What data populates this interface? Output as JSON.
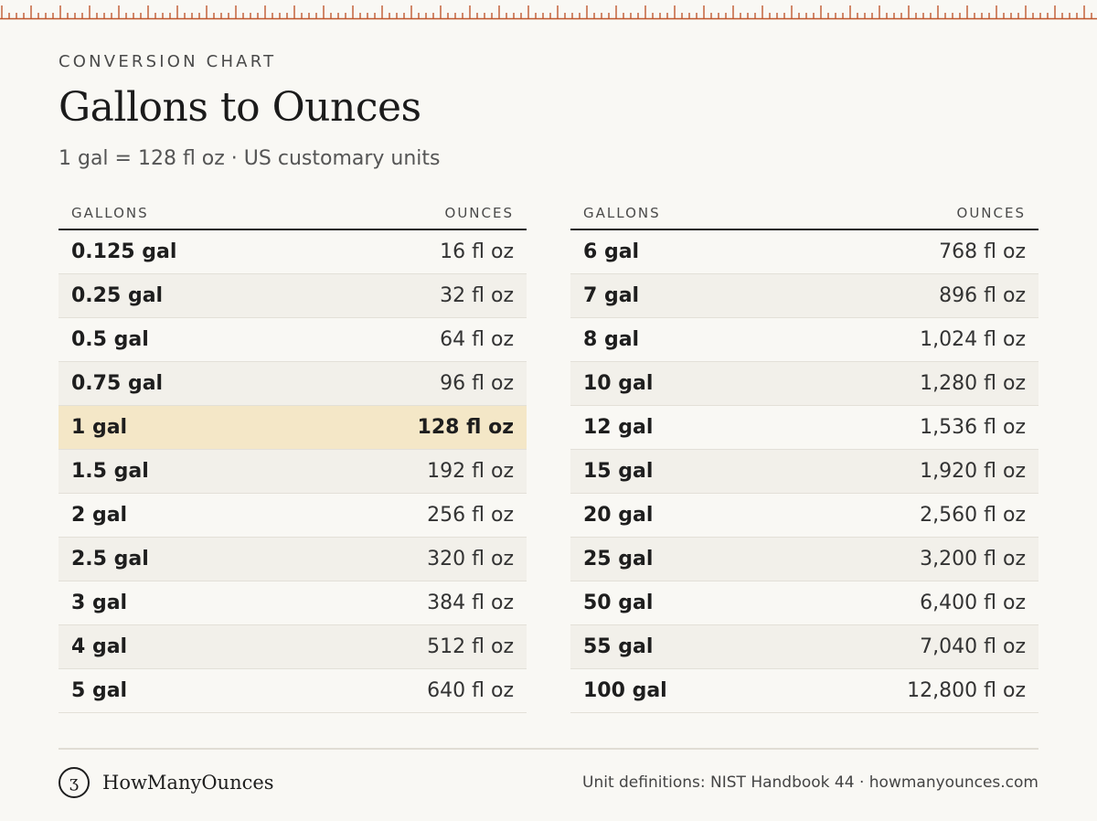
{
  "header": {
    "eyebrow": "CONVERSION CHART",
    "title": "Gallons to Ounces",
    "subtitle": "1 gal = 128 fl oz · US customary units"
  },
  "colors": {
    "ruler": "#c0572f",
    "highlight_row": "#f4e7c7",
    "alt_row": "#f2f0ea",
    "background": "#f9f8f4"
  },
  "tables": {
    "left": {
      "col_gallons": "GALLONS",
      "col_ounces": "OUNCES",
      "rows": [
        {
          "gal": "0.125 gal",
          "oz": "16 fl oz"
        },
        {
          "gal": "0.25 gal",
          "oz": "32 fl oz"
        },
        {
          "gal": "0.5 gal",
          "oz": "64 fl oz"
        },
        {
          "gal": "0.75 gal",
          "oz": "96 fl oz"
        },
        {
          "gal": "1 gal",
          "oz": "128 fl oz",
          "highlight": true
        },
        {
          "gal": "1.5 gal",
          "oz": "192 fl oz"
        },
        {
          "gal": "2 gal",
          "oz": "256 fl oz"
        },
        {
          "gal": "2.5 gal",
          "oz": "320 fl oz"
        },
        {
          "gal": "3 gal",
          "oz": "384 fl oz"
        },
        {
          "gal": "4 gal",
          "oz": "512 fl oz"
        },
        {
          "gal": "5 gal",
          "oz": "640 fl oz"
        }
      ]
    },
    "right": {
      "col_gallons": "GALLONS",
      "col_ounces": "OUNCES",
      "rows": [
        {
          "gal": "6 gal",
          "oz": "768 fl oz"
        },
        {
          "gal": "7 gal",
          "oz": "896 fl oz"
        },
        {
          "gal": "8 gal",
          "oz": "1,024 fl oz"
        },
        {
          "gal": "10 gal",
          "oz": "1,280 fl oz"
        },
        {
          "gal": "12 gal",
          "oz": "1,536 fl oz"
        },
        {
          "gal": "15 gal",
          "oz": "1,920 fl oz"
        },
        {
          "gal": "20 gal",
          "oz": "2,560 fl oz"
        },
        {
          "gal": "25 gal",
          "oz": "3,200 fl oz"
        },
        {
          "gal": "50 gal",
          "oz": "6,400 fl oz"
        },
        {
          "gal": "55 gal",
          "oz": "7,040 fl oz"
        },
        {
          "gal": "100 gal",
          "oz": "12,800 fl oz"
        }
      ]
    }
  },
  "footer": {
    "logo_glyph": "ʒ",
    "brand": "HowManyOunces",
    "source": "Unit definitions: NIST Handbook 44 · howmanyounces.com"
  }
}
